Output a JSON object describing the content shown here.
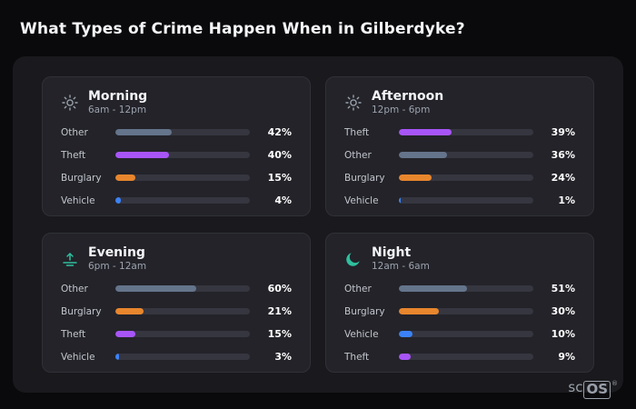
{
  "page_title": "What Types of Crime Happen When in Gilberdyke?",
  "brand": {
    "prefix": "sc",
    "suffix": "OS",
    "registered": "®"
  },
  "colors": {
    "background": "#0a0a0c",
    "panel": "#1a1a1e",
    "card": "#232329",
    "card_border": "#303037",
    "track": "#363640",
    "other": "#64748b",
    "theft": "#a855f7",
    "burglary": "#e8862d",
    "vehicle": "#3b82f6",
    "accent_teal": "#2fbf9f",
    "icon_gray": "#9aa3ad"
  },
  "chart_data": [
    {
      "type": "bar",
      "title": "Morning",
      "subtitle": "6am - 12pm",
      "icon": "sun-icon",
      "icon_color": "#9aa3ad",
      "categories": [
        "Other",
        "Theft",
        "Burglary",
        "Vehicle"
      ],
      "values": [
        42,
        40,
        15,
        4
      ],
      "value_labels": [
        "42%",
        "40%",
        "15%",
        "4%"
      ],
      "bar_colors": [
        "#64748b",
        "#a855f7",
        "#e8862d",
        "#3b82f6"
      ],
      "xlim": [
        0,
        100
      ]
    },
    {
      "type": "bar",
      "title": "Afternoon",
      "subtitle": "12pm - 6pm",
      "icon": "sun-icon",
      "icon_color": "#9aa3ad",
      "categories": [
        "Theft",
        "Other",
        "Burglary",
        "Vehicle"
      ],
      "values": [
        39,
        36,
        24,
        1
      ],
      "value_labels": [
        "39%",
        "36%",
        "24%",
        "1%"
      ],
      "bar_colors": [
        "#a855f7",
        "#64748b",
        "#e8862d",
        "#3b82f6"
      ],
      "xlim": [
        0,
        100
      ]
    },
    {
      "type": "bar",
      "title": "Evening",
      "subtitle": "6pm - 12am",
      "icon": "sunset-icon",
      "icon_color": "#2fbf9f",
      "categories": [
        "Other",
        "Burglary",
        "Theft",
        "Vehicle"
      ],
      "values": [
        60,
        21,
        15,
        3
      ],
      "value_labels": [
        "60%",
        "21%",
        "15%",
        "3%"
      ],
      "bar_colors": [
        "#64748b",
        "#e8862d",
        "#a855f7",
        "#3b82f6"
      ],
      "xlim": [
        0,
        100
      ]
    },
    {
      "type": "bar",
      "title": "Night",
      "subtitle": "12am - 6am",
      "icon": "moon-icon",
      "icon_color": "#2fbf9f",
      "categories": [
        "Other",
        "Burglary",
        "Vehicle",
        "Theft"
      ],
      "values": [
        51,
        30,
        10,
        9
      ],
      "value_labels": [
        "51%",
        "30%",
        "10%",
        "9%"
      ],
      "bar_colors": [
        "#64748b",
        "#e8862d",
        "#3b82f6",
        "#a855f7"
      ],
      "xlim": [
        0,
        100
      ]
    }
  ]
}
